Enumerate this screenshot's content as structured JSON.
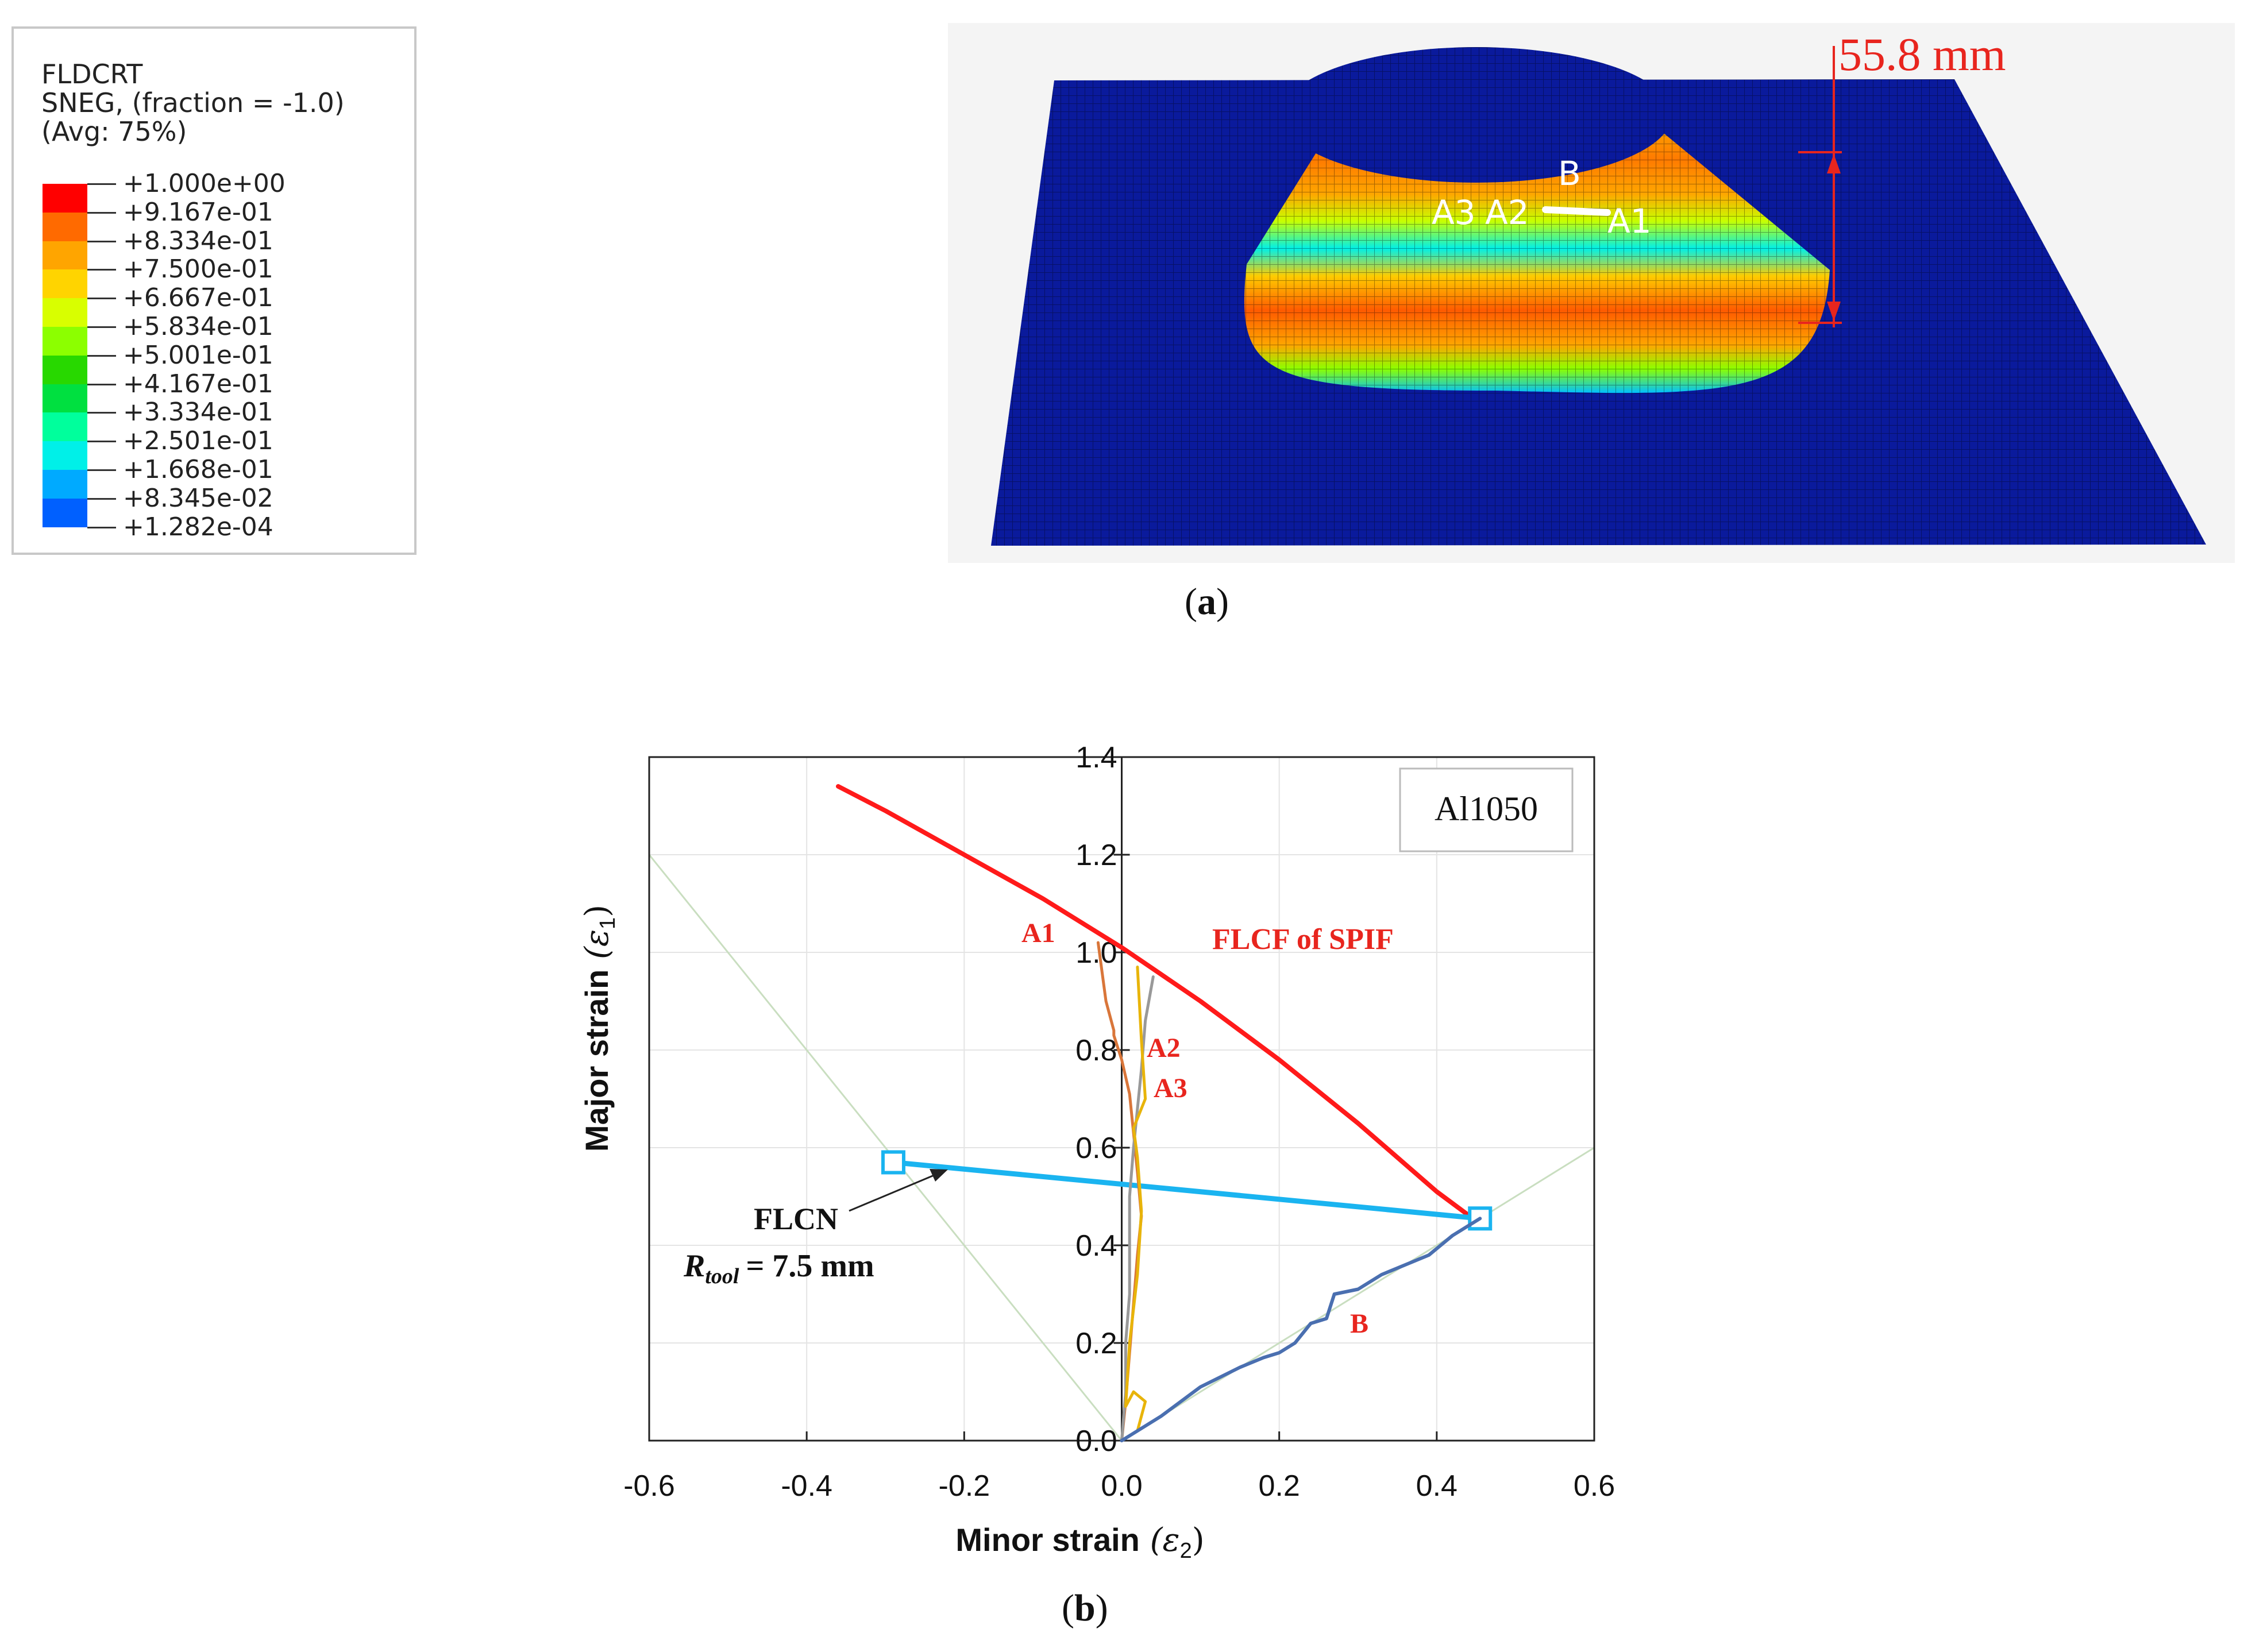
{
  "panel_a": {
    "legend": {
      "title_lines": [
        "FLDCRT",
        "SNEG, (fraction = -1.0)",
        "(Avg: 75%)"
      ],
      "entries": [
        {
          "value": "+1.000e+00",
          "color": "#ff0000"
        },
        {
          "value": "+9.167e-01",
          "color": "#ff6a00"
        },
        {
          "value": "+8.334e-01",
          "color": "#ffa500"
        },
        {
          "value": "+7.500e-01",
          "color": "#ffd400"
        },
        {
          "value": "+6.667e-01",
          "color": "#d8ff00"
        },
        {
          "value": "+5.834e-01",
          "color": "#8cff00"
        },
        {
          "value": "+5.001e-01",
          "color": "#28d800"
        },
        {
          "value": "+4.167e-01",
          "color": "#00e040"
        },
        {
          "value": "+3.334e-01",
          "color": "#00ff9c"
        },
        {
          "value": "+2.501e-01",
          "color": "#00f0e8"
        },
        {
          "value": "+1.668e-01",
          "color": "#00aaff"
        },
        {
          "value": "+8.345e-02",
          "color": "#0060ff"
        },
        {
          "value": "+1.282e-04",
          "color": "#0000ff"
        }
      ]
    },
    "dimension_label": "55.8 mm",
    "point_labels": {
      "b": "B",
      "a1": "A1",
      "a2": "A2",
      "a3": "A3"
    },
    "caption": "a"
  },
  "panel_b": {
    "caption": "b"
  },
  "chart_data": {
    "type": "line",
    "xlabel": "Minor strain",
    "xlabel_symbol": "ε",
    "xlabel_sub": "2",
    "ylabel": "Major strain",
    "ylabel_symbol": "ε",
    "ylabel_sub": "1",
    "xlim": [
      -0.6,
      0.6
    ],
    "ylim": [
      0.0,
      1.4
    ],
    "xticks": [
      "-0.6",
      "-0.4",
      "-0.2",
      "0.0",
      "0.2",
      "0.4",
      "0.6"
    ],
    "xtick_values": [
      -0.6,
      -0.4,
      -0.2,
      0.0,
      0.2,
      0.4,
      0.6
    ],
    "yticks": [
      "0.0",
      "0.2",
      "0.4",
      "0.6",
      "0.8",
      "1.0",
      "1.2",
      "1.4"
    ],
    "ytick_values": [
      0.0,
      0.2,
      0.4,
      0.6,
      0.8,
      1.0,
      1.2,
      1.4
    ],
    "grid": true,
    "legend_box": "Al1050",
    "annotations": {
      "flcf": "FLCF of SPIF",
      "a1": "A1",
      "a2": "A2",
      "a3": "A3",
      "b": "B",
      "flcn": "FLCN",
      "rtool_symbol": "R",
      "rtool_sub": "tool",
      "rtool_value": "= 7.5 mm"
    },
    "colors": {
      "flcf": "#ff1a1a",
      "flcn": "#1ab4f0",
      "a1": "#d9763a",
      "a2": "#999999",
      "a3": "#e8b40a",
      "b": "#4a6fb0",
      "guide": "#c9dec0",
      "label_red": "#e8251e"
    },
    "series": [
      {
        "name": "FLCF of SPIF",
        "x": [
          -0.36,
          -0.3,
          -0.2,
          -0.1,
          0.0,
          0.1,
          0.2,
          0.3,
          0.4,
          0.45
        ],
        "y": [
          1.34,
          1.29,
          1.2,
          1.11,
          1.01,
          0.9,
          0.78,
          0.65,
          0.51,
          0.45
        ]
      },
      {
        "name": "FLCN",
        "x": [
          -0.29,
          0.455
        ],
        "y": [
          0.57,
          0.455
        ]
      },
      {
        "name": "A1",
        "x": [
          0.0,
          0.005,
          0.01,
          0.015,
          0.02,
          0.025,
          0.02,
          0.015,
          0.01,
          0.0,
          -0.01,
          -0.01,
          -0.02,
          -0.03
        ],
        "y": [
          0.0,
          0.08,
          0.18,
          0.28,
          0.38,
          0.46,
          0.55,
          0.63,
          0.71,
          0.78,
          0.83,
          0.84,
          0.9,
          1.02
        ]
      },
      {
        "name": "A2",
        "x": [
          0.0,
          0.005,
          0.005,
          0.01,
          0.01,
          0.01,
          0.015,
          0.02,
          0.025,
          0.03,
          0.04
        ],
        "y": [
          0.0,
          0.1,
          0.2,
          0.3,
          0.4,
          0.5,
          0.6,
          0.68,
          0.76,
          0.86,
          0.95
        ]
      },
      {
        "name": "A3",
        "x": [
          0.0,
          0.02,
          0.03,
          0.015,
          0.005,
          0.01,
          0.02,
          0.025,
          0.02,
          0.015,
          0.03,
          0.025,
          0.02
        ],
        "y": [
          0.0,
          0.02,
          0.08,
          0.1,
          0.07,
          0.2,
          0.34,
          0.47,
          0.58,
          0.64,
          0.7,
          0.82,
          0.97
        ]
      },
      {
        "name": "B",
        "x": [
          0.0,
          0.05,
          0.1,
          0.15,
          0.18,
          0.2,
          0.22,
          0.24,
          0.26,
          0.27,
          0.3,
          0.33,
          0.36,
          0.39,
          0.42,
          0.455
        ],
        "y": [
          0.0,
          0.05,
          0.11,
          0.15,
          0.17,
          0.18,
          0.2,
          0.24,
          0.25,
          0.3,
          0.31,
          0.34,
          0.36,
          0.38,
          0.42,
          0.455
        ]
      },
      {
        "name": "guide-left",
        "x": [
          0.0,
          -0.6
        ],
        "y": [
          0.0,
          1.2
        ]
      },
      {
        "name": "guide-right",
        "x": [
          0.0,
          0.6
        ],
        "y": [
          0.0,
          0.6
        ]
      }
    ]
  }
}
